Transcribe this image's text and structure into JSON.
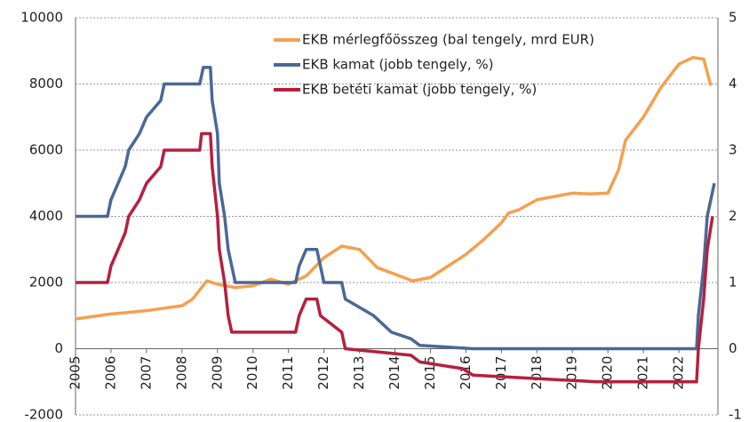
{
  "chart_data": {
    "type": "line",
    "xlim": [
      2005,
      2023.1
    ],
    "xticks": [
      2005,
      2006,
      2007,
      2008,
      2009,
      2010,
      2011,
      2012,
      2013,
      2014,
      2015,
      2016,
      2017,
      2018,
      2019,
      2020,
      2021,
      2022
    ],
    "ylim": [
      -2000,
      10000
    ],
    "yticks": [
      -2000,
      0,
      2000,
      4000,
      6000,
      8000,
      10000
    ],
    "y2lim": [
      -1,
      5
    ],
    "y2ticks": [
      -1,
      0,
      1,
      2,
      3,
      4,
      5
    ],
    "grid": true,
    "legend": "top",
    "series": [
      {
        "name": "EKB mérlegfőösszeg (bal tengely, mrd EUR)",
        "color": "#f5a04f",
        "x": [
          2005,
          2006,
          2007,
          2008,
          2008.3,
          2008.7,
          2009,
          2009.5,
          2010,
          2010.5,
          2011,
          2011.5,
          2012,
          2012.5,
          2013,
          2013.5,
          2014,
          2014.5,
          2015,
          2015.5,
          2016,
          2016.5,
          2017,
          2017.2,
          2017.5,
          2018,
          2018.5,
          2019,
          2019.5,
          2020,
          2020.3,
          2020.5,
          2021,
          2021.5,
          2022,
          2022.4,
          2022.7,
          2022.9
        ],
        "values": [
          900,
          1050,
          1150,
          1300,
          1500,
          2050,
          1950,
          1850,
          1900,
          2100,
          1950,
          2200,
          2750,
          3100,
          3000,
          2450,
          2250,
          2050,
          2150,
          2500,
          2850,
          3300,
          3800,
          4100,
          4200,
          4500,
          4600,
          4700,
          4680,
          4700,
          5400,
          6300,
          7000,
          7900,
          8600,
          8800,
          8750,
          7950
        ]
      },
      {
        "name": "EKB kamat (jobb tengely, %)",
        "color": "#4a6896",
        "axis": "y2",
        "x": [
          2005,
          2005.9,
          2006,
          2006.2,
          2006.4,
          2006.5,
          2006.8,
          2007,
          2007.4,
          2007.5,
          2008.5,
          2008.6,
          2008.8,
          2008.85,
          2009,
          2009.05,
          2009.2,
          2009.3,
          2009.4,
          2009.5,
          2011.2,
          2011.3,
          2011.5,
          2011.8,
          2011.9,
          2012,
          2012.5,
          2012.6,
          2013.4,
          2013.9,
          2014.45,
          2014.7,
          2016.2,
          2022.5,
          2022.55,
          2022.7,
          2022.8,
          2023
        ],
        "values": [
          2,
          2,
          2.25,
          2.5,
          2.75,
          3,
          3.25,
          3.5,
          3.75,
          4,
          4,
          4.25,
          4.25,
          3.75,
          3.25,
          2.5,
          2,
          1.5,
          1.25,
          1,
          1,
          1.25,
          1.5,
          1.5,
          1.25,
          1,
          1,
          0.75,
          0.5,
          0.25,
          0.15,
          0.05,
          0,
          0,
          0.5,
          1.25,
          2,
          2.5
        ]
      },
      {
        "name": "EKB betéti kamat (jobb tengely, %)",
        "color": "#b5203e",
        "axis": "y2",
        "x": [
          2005,
          2005.9,
          2006,
          2006.2,
          2006.4,
          2006.5,
          2006.8,
          2007,
          2007.4,
          2007.5,
          2008.5,
          2008.55,
          2008.8,
          2008.85,
          2009,
          2009.05,
          2009.2,
          2009.3,
          2009.4,
          2011.2,
          2011.3,
          2011.5,
          2011.8,
          2011.9,
          2012.5,
          2012.6,
          2014.45,
          2014.7,
          2015.9,
          2016.2,
          2019.7,
          2022.5,
          2022.55,
          2022.7,
          2022.8,
          2022.95
        ],
        "values": [
          1,
          1,
          1.25,
          1.5,
          1.75,
          2,
          2.25,
          2.5,
          2.75,
          3,
          3,
          3.25,
          3.25,
          2.75,
          2,
          1.5,
          1,
          0.5,
          0.25,
          0.25,
          0.5,
          0.75,
          0.75,
          0.5,
          0.25,
          0,
          -0.1,
          -0.2,
          -0.3,
          -0.4,
          -0.5,
          -0.5,
          0,
          0.75,
          1.5,
          2
        ]
      }
    ]
  }
}
